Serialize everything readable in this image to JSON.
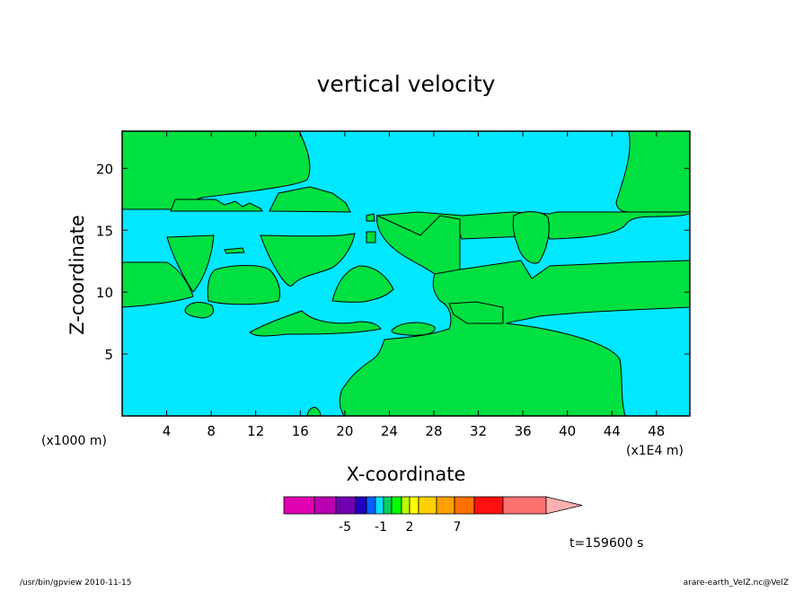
{
  "chart_data": {
    "type": "heatmap",
    "title": "vertical velocity",
    "xlabel": "X-coordinate",
    "ylabel": "Z-coordinate",
    "x_unit_label": "(x1000 m)",
    "x_extent_label": "(x1E4 m)",
    "x_ticks": [
      "4",
      "8",
      "12",
      "16",
      "20",
      "24",
      "28",
      "32",
      "36",
      "40",
      "44",
      "48"
    ],
    "y_ticks": [
      "5",
      "10",
      "15",
      "20"
    ],
    "xlim": [
      0,
      51
    ],
    "ylim": [
      0,
      23
    ],
    "field_colors": {
      "negative_region": "#00e8ff",
      "positive_region": "#00e040"
    },
    "colorbar": {
      "colors": [
        "#e000b0",
        "#b800b0",
        "#7000b0",
        "#2000c0",
        "#0060ff",
        "#00e0ff",
        "#00d060",
        "#00ff00",
        "#c0ff00",
        "#ffff00",
        "#ffd000",
        "#ffa000",
        "#ff7000",
        "#ff1010",
        "#ff7070",
        "#ffb0b0"
      ],
      "labels": [
        "-5",
        "-1",
        "2",
        "7"
      ]
    },
    "time_label": "t=159600 s"
  },
  "footer": {
    "left": "/usr/bin/gpview   2010-11-15",
    "right": "arare-earth_VelZ.nc@VelZ"
  }
}
